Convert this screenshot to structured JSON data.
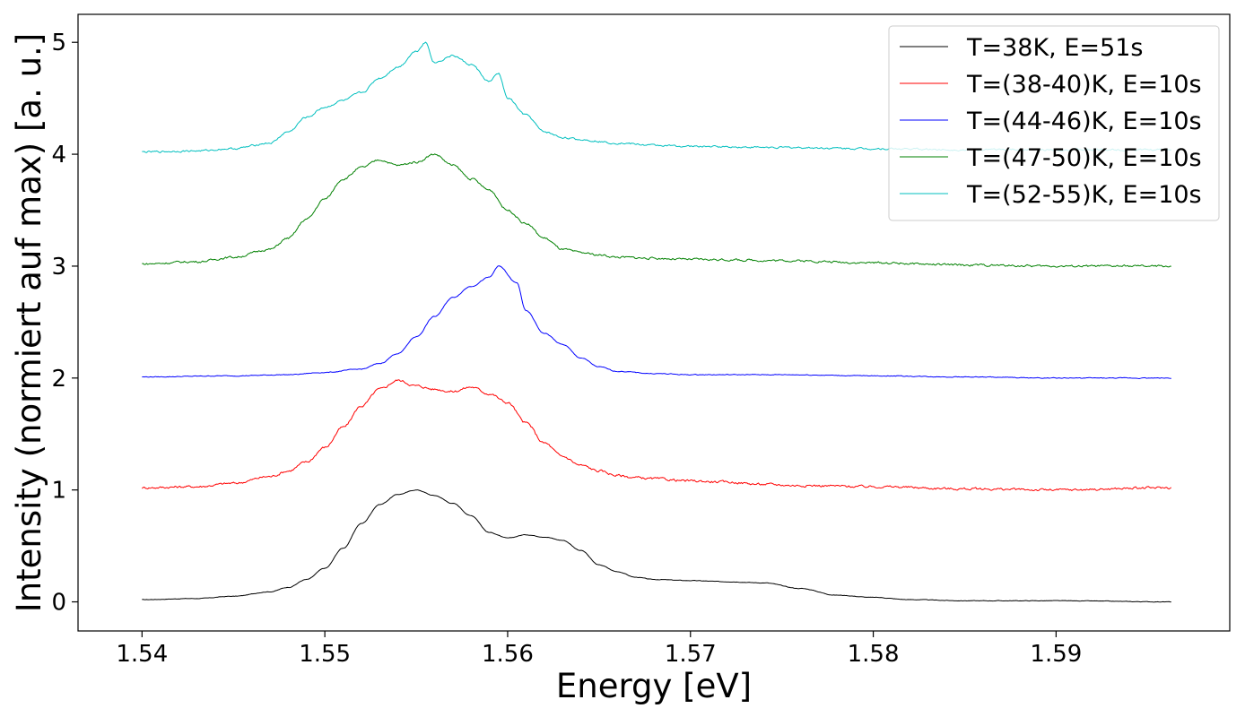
{
  "chart_data": {
    "type": "line",
    "xlabel": "Energy [eV]",
    "ylabel": "Intensity (normiert auf max) [a. u.]",
    "xlim": [
      1.5365,
      1.5995
    ],
    "ylim": [
      -0.26,
      5.25
    ],
    "xticks": [
      1.54,
      1.55,
      1.56,
      1.57,
      1.58,
      1.59
    ],
    "xtick_labels": [
      "1.54",
      "1.55",
      "1.56",
      "1.57",
      "1.58",
      "1.59"
    ],
    "yticks": [
      0,
      1,
      2,
      3,
      4,
      5
    ],
    "ytick_labels": [
      "0",
      "1",
      "2",
      "3",
      "4",
      "5"
    ],
    "grid": false,
    "legend_position": "top-right",
    "series": [
      {
        "name": "T=38K, E=51s",
        "color": "#000000",
        "x": [
          1.54,
          1.543,
          1.545,
          1.547,
          1.548,
          1.549,
          1.55,
          1.551,
          1.552,
          1.553,
          1.554,
          1.555,
          1.556,
          1.557,
          1.558,
          1.559,
          1.56,
          1.561,
          1.562,
          1.563,
          1.564,
          1.565,
          1.566,
          1.567,
          1.568,
          1.57,
          1.572,
          1.574,
          1.576,
          1.578,
          1.58,
          1.582,
          1.585,
          1.59,
          1.5963
        ],
        "y": [
          0.02,
          0.03,
          0.05,
          0.09,
          0.13,
          0.2,
          0.3,
          0.48,
          0.7,
          0.87,
          0.96,
          1.0,
          0.95,
          0.88,
          0.77,
          0.62,
          0.57,
          0.6,
          0.58,
          0.55,
          0.46,
          0.33,
          0.27,
          0.22,
          0.2,
          0.19,
          0.18,
          0.17,
          0.12,
          0.06,
          0.04,
          0.02,
          0.01,
          0.01,
          0.0
        ]
      },
      {
        "name": "T=(38-40)K, E=10s",
        "color": "#ff0000",
        "x": [
          1.54,
          1.543,
          1.545,
          1.547,
          1.548,
          1.549,
          1.55,
          1.551,
          1.552,
          1.553,
          1.554,
          1.555,
          1.556,
          1.557,
          1.558,
          1.559,
          1.56,
          1.561,
          1.562,
          1.563,
          1.564,
          1.565,
          1.566,
          1.567,
          1.568,
          1.57,
          1.572,
          1.574,
          1.576,
          1.58,
          1.585,
          1.59,
          1.5963
        ],
        "y": [
          1.02,
          1.03,
          1.06,
          1.12,
          1.17,
          1.25,
          1.38,
          1.56,
          1.75,
          1.9,
          1.98,
          1.93,
          1.9,
          1.88,
          1.92,
          1.86,
          1.78,
          1.6,
          1.42,
          1.3,
          1.22,
          1.17,
          1.13,
          1.11,
          1.1,
          1.08,
          1.07,
          1.05,
          1.04,
          1.03,
          1.01,
          1.0,
          1.02
        ]
      },
      {
        "name": "T=(44-46)K, E=10s",
        "color": "#0000ff",
        "x": [
          1.54,
          1.545,
          1.548,
          1.55,
          1.552,
          1.553,
          1.554,
          1.555,
          1.556,
          1.557,
          1.558,
          1.559,
          1.5595,
          1.5605,
          1.561,
          1.562,
          1.563,
          1.564,
          1.565,
          1.566,
          1.568,
          1.57,
          1.575,
          1.58,
          1.585,
          1.59,
          1.5963
        ],
        "y": [
          2.01,
          2.02,
          2.03,
          2.05,
          2.08,
          2.13,
          2.22,
          2.37,
          2.55,
          2.72,
          2.82,
          2.9,
          3.0,
          2.85,
          2.6,
          2.4,
          2.3,
          2.18,
          2.1,
          2.06,
          2.04,
          2.03,
          2.03,
          2.02,
          2.01,
          2.0,
          2.0
        ]
      },
      {
        "name": "T=(47-50)K, E=10s",
        "color": "#008000",
        "x": [
          1.54,
          1.543,
          1.545,
          1.547,
          1.548,
          1.549,
          1.55,
          1.551,
          1.552,
          1.553,
          1.554,
          1.555,
          1.556,
          1.557,
          1.558,
          1.559,
          1.56,
          1.561,
          1.562,
          1.563,
          1.564,
          1.565,
          1.566,
          1.568,
          1.57,
          1.575,
          1.58,
          1.585,
          1.59,
          1.5963
        ],
        "y": [
          3.02,
          3.04,
          3.08,
          3.15,
          3.25,
          3.42,
          3.6,
          3.78,
          3.88,
          3.95,
          3.9,
          3.93,
          4.0,
          3.9,
          3.78,
          3.68,
          3.5,
          3.38,
          3.25,
          3.15,
          3.12,
          3.1,
          3.08,
          3.07,
          3.06,
          3.05,
          3.03,
          3.01,
          3.0,
          3.0
        ]
      },
      {
        "name": "T=(52-55)K, E=10s",
        "color": "#00bfbf",
        "x": [
          1.54,
          1.543,
          1.545,
          1.547,
          1.548,
          1.549,
          1.55,
          1.551,
          1.552,
          1.553,
          1.554,
          1.555,
          1.5555,
          1.556,
          1.557,
          1.558,
          1.559,
          1.5595,
          1.56,
          1.561,
          1.562,
          1.563,
          1.564,
          1.566,
          1.568,
          1.57,
          1.575,
          1.58,
          1.585,
          1.5963
        ],
        "y": [
          4.02,
          4.03,
          4.05,
          4.1,
          4.2,
          4.33,
          4.42,
          4.48,
          4.55,
          4.68,
          4.78,
          4.92,
          5.0,
          4.82,
          4.88,
          4.8,
          4.65,
          4.72,
          4.5,
          4.35,
          4.2,
          4.15,
          4.13,
          4.1,
          4.08,
          4.07,
          4.06,
          4.05,
          4.04,
          4.04
        ]
      }
    ]
  }
}
